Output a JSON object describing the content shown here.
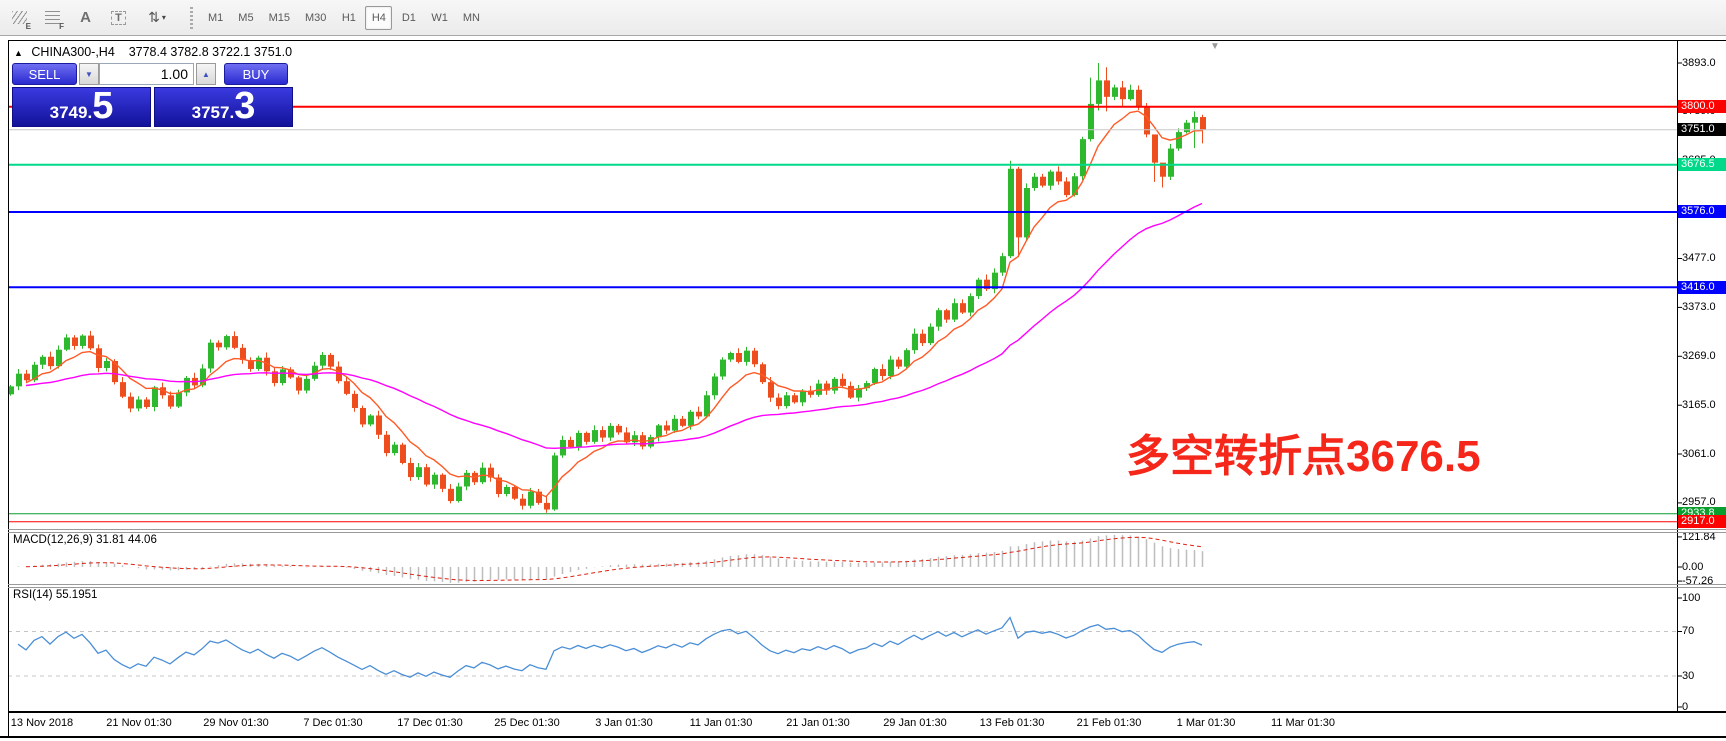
{
  "toolbar": {
    "tools": [
      {
        "name": "equidistant-channel-tool",
        "sub": "E"
      },
      {
        "name": "fibonacci-tool",
        "sub": "F"
      },
      {
        "name": "text-label-tool",
        "glyph": "A"
      },
      {
        "name": "text-tool",
        "glyph": "T"
      },
      {
        "name": "arrow-objects-tool",
        "glyph": "⇅",
        "caret": "▾"
      }
    ],
    "timeframes": [
      "M1",
      "M5",
      "M15",
      "M30",
      "H1",
      "H4",
      "D1",
      "W1",
      "MN"
    ],
    "active_timeframe": "H4"
  },
  "chart": {
    "symbol_title": "CHINA300-,H4",
    "ohlc_line": "3778.4 3782.8 3722.1 3751.0",
    "collapse_glyph": "▲",
    "shift_marker": "▼",
    "trade_panel": {
      "sell_label": "SELL",
      "buy_label": "BUY",
      "volume": "1.00",
      "spin_down": "▼",
      "spin_up": "▲",
      "sell_price_main": "3749",
      "sell_price_frac": "5",
      "buy_price_main": "3757",
      "buy_price_frac": "3",
      "decimal_point": "."
    },
    "annotation": {
      "text": "多空转折点3676.5",
      "color": "#f5261a"
    }
  },
  "price_axis": {
    "plain_ticks": [
      {
        "label": "3893.0",
        "price": 3893
      },
      {
        "label": "3789.0",
        "price": 3789
      },
      {
        "label": "3685.0",
        "price": 3685
      },
      {
        "label": "3477.0",
        "price": 3477
      },
      {
        "label": "3373.0",
        "price": 3373
      },
      {
        "label": "3269.0",
        "price": 3269
      },
      {
        "label": "3165.0",
        "price": 3165
      },
      {
        "label": "3061.0",
        "price": 3061
      },
      {
        "label": "2957.0",
        "price": 2957
      }
    ],
    "line_labels": [
      {
        "label": "3800.0",
        "price": 3800,
        "bg": "#ff0000"
      },
      {
        "label": "3751.0",
        "price": 3751,
        "bg": "#000000"
      },
      {
        "label": "3676.5",
        "price": 3676.5,
        "bg": "#00d98a"
      },
      {
        "label": "3576.0",
        "price": 3576,
        "bg": "#0000ff"
      },
      {
        "label": "3416.0",
        "price": 3416,
        "bg": "#0000ff"
      },
      {
        "label": "2933.8",
        "price": 2933.8,
        "bg": "#0a9e2e"
      },
      {
        "label": "2917.0",
        "price": 2917,
        "bg": "#ff0000"
      }
    ]
  },
  "chart_data": {
    "type": "candlestick",
    "symbol": "CHINA300-",
    "timeframe": "H4",
    "y_range": [
      2917,
      3893
    ],
    "time_ticks": [
      "13 Nov 2018",
      "21 Nov 01:30",
      "29 Nov 01:30",
      "7 Dec 01:30",
      "17 Dec 01:30",
      "25 Dec 01:30",
      "3 Jan 01:30",
      "11 Jan 01:30",
      "21 Jan 01:30",
      "29 Jan 01:30",
      "13 Feb 01:30",
      "21 Feb 01:30",
      "1 Mar 01:30",
      "11 Mar 01:30"
    ],
    "first_open": 3188,
    "closes": [
      3205,
      3232,
      3218,
      3251,
      3268,
      3248,
      3283,
      3309,
      3291,
      3313,
      3286,
      3244,
      3259,
      3214,
      3183,
      3158,
      3177,
      3161,
      3203,
      3186,
      3162,
      3192,
      3223,
      3207,
      3243,
      3298,
      3288,
      3312,
      3287,
      3261,
      3242,
      3266,
      3237,
      3212,
      3241,
      3224,
      3196,
      3221,
      3249,
      3272,
      3247,
      3216,
      3189,
      3159,
      3124,
      3143,
      3102,
      3063,
      3081,
      3042,
      3012,
      3033,
      2996,
      3017,
      2987,
      2961,
      2992,
      3021,
      3001,
      3032,
      3011,
      2976,
      2991,
      2966,
      2951,
      2981,
      2957,
      2943,
      3058,
      3091,
      3076,
      3106,
      3087,
      3112,
      3096,
      3121,
      3107,
      3086,
      3101,
      3077,
      3097,
      3122,
      3111,
      3136,
      3121,
      3151,
      3141,
      3186,
      3226,
      3262,
      3276,
      3257,
      3281,
      3252,
      3214,
      3181,
      3163,
      3186,
      3171,
      3196,
      3187,
      3211,
      3196,
      3221,
      3206,
      3181,
      3201,
      3212,
      3242,
      3227,
      3262,
      3247,
      3282,
      3317,
      3297,
      3332,
      3367,
      3347,
      3382,
      3362,
      3397,
      3432,
      3412,
      3447,
      3482,
      3668,
      3522,
      3627,
      3651,
      3632,
      3662,
      3641,
      3612,
      3652,
      3731,
      3806,
      3856,
      3821,
      3841,
      3816,
      3836,
      3801,
      3741,
      3681,
      3651,
      3711,
      3746,
      3766,
      3778,
      3751
    ],
    "wick_overrides": {
      "67": [
        2972,
        2936
      ],
      "68": [
        3064,
        2940
      ],
      "125": [
        3685,
        3478
      ],
      "126": [
        3672,
        3480
      ],
      "135": [
        3862,
        3726
      ],
      "136": [
        3893,
        3792
      ],
      "137": [
        3884,
        3790
      ],
      "139": [
        3855,
        3800
      ],
      "143": [
        3702,
        3640
      ],
      "144": [
        3668,
        3628
      ],
      "148": [
        3790,
        3712
      ],
      "149": [
        3783,
        3722
      ]
    },
    "hlines": [
      {
        "price": 3800,
        "color": "#ff0000",
        "width": 2
      },
      {
        "price": 3751,
        "color": "#c8c8c8",
        "width": 1
      },
      {
        "price": 3676.5,
        "color": "#00d98a",
        "width": 2
      },
      {
        "price": 3576,
        "color": "#0000ff",
        "width": 2
      },
      {
        "price": 3416,
        "color": "#0000ff",
        "width": 2
      },
      {
        "price": 2933.8,
        "color": "#0a9e2e",
        "width": 1
      },
      {
        "price": 2917,
        "color": "#ff0000",
        "width": 1
      }
    ],
    "overlays": [
      {
        "name": "fast-ma",
        "period": 8,
        "color": "#ff5a26"
      },
      {
        "name": "slow-ma",
        "period": 42,
        "color": "#ff00ff"
      }
    ],
    "indicators": [
      {
        "name": "macd",
        "label": "MACD(12,26,9) 31.81 44.06",
        "axis_labels": [
          "121.84",
          "0.00",
          "-57.26"
        ],
        "axis_values": [
          121.84,
          0,
          -57.26
        ],
        "main": 31.81,
        "signal": 44.06
      },
      {
        "name": "rsi",
        "label": "RSI(14) 55.1951",
        "axis_labels": [
          "100",
          "70",
          "30",
          "0"
        ],
        "axis_values": [
          100,
          70,
          30,
          0
        ],
        "levels": [
          70,
          30
        ],
        "value": 55.1951
      }
    ],
    "candle_up_color": "#2eb82e",
    "candle_down_color": "#ee4d1e",
    "rsi_color": "#4a8ed6",
    "macd_hist_color": "#bdbdbd",
    "macd_signal_color": "#dd2211"
  }
}
